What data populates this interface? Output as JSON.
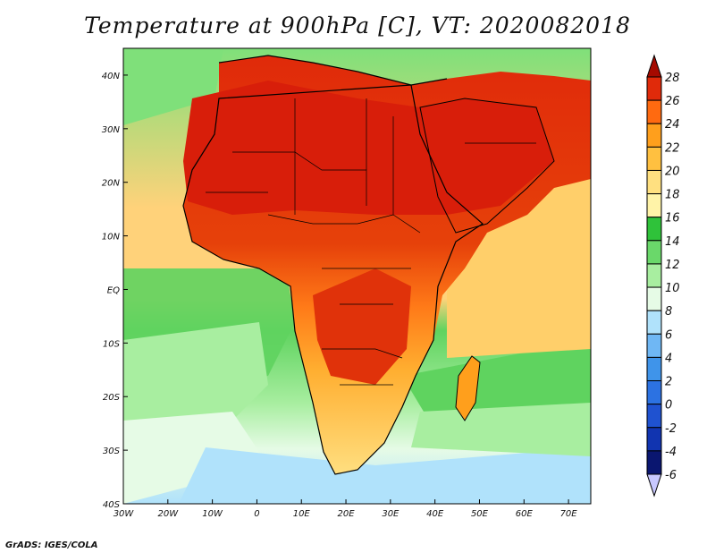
{
  "title": "Temperature at 900hPa [C], VT: 2020082018",
  "credit": "GrADS: IGES/COLA",
  "map": {
    "lon_range": [
      -30,
      75
    ],
    "lat_range": [
      -40,
      45
    ],
    "lon_ticks": [
      {
        "lon": -30,
        "label": "30W"
      },
      {
        "lon": -20,
        "label": "20W"
      },
      {
        "lon": -10,
        "label": "10W"
      },
      {
        "lon": 0,
        "label": "0"
      },
      {
        "lon": 10,
        "label": "10E"
      },
      {
        "lon": 20,
        "label": "20E"
      },
      {
        "lon": 30,
        "label": "30E"
      },
      {
        "lon": 40,
        "label": "40E"
      },
      {
        "lon": 50,
        "label": "50E"
      },
      {
        "lon": 60,
        "label": "60E"
      },
      {
        "lon": 70,
        "label": "70E"
      }
    ],
    "lat_ticks": [
      {
        "lat": 40,
        "label": "40N"
      },
      {
        "lat": 30,
        "label": "30N"
      },
      {
        "lat": 20,
        "label": "20N"
      },
      {
        "lat": 10,
        "label": "10N"
      },
      {
        "lat": 0,
        "label": "EQ"
      },
      {
        "lat": -10,
        "label": "10S"
      },
      {
        "lat": -20,
        "label": "20S"
      },
      {
        "lat": -30,
        "label": "30S"
      },
      {
        "lat": -40,
        "label": "40S"
      }
    ]
  },
  "colorbar": {
    "levels": [
      "28",
      "26",
      "24",
      "22",
      "20",
      "18",
      "16",
      "14",
      "12",
      "10",
      "8",
      "6",
      "4",
      "2",
      "0",
      "-2",
      "-4",
      "-6"
    ],
    "colors": [
      "#a50a00",
      "#e02a0a",
      "#ff6a10",
      "#ff9f1c",
      "#ffc040",
      "#ffe080",
      "#fff3a8",
      "#2fc23a",
      "#6ad86a",
      "#a8eea0",
      "#e6fbe6",
      "#b0e2fb",
      "#6fb7f4",
      "#3f94ea",
      "#2c72e2",
      "#1f52d0",
      "#1134b0",
      "#0a1670"
    ]
  },
  "legend_colors": {
    "ocean_warm": "#ffcf6a",
    "ocean_mild": "#a8eea0",
    "ocean_cool": "#e6fbe6",
    "ocean_cold": "#b0e2fb",
    "land_hot": "#e02a0a"
  }
}
